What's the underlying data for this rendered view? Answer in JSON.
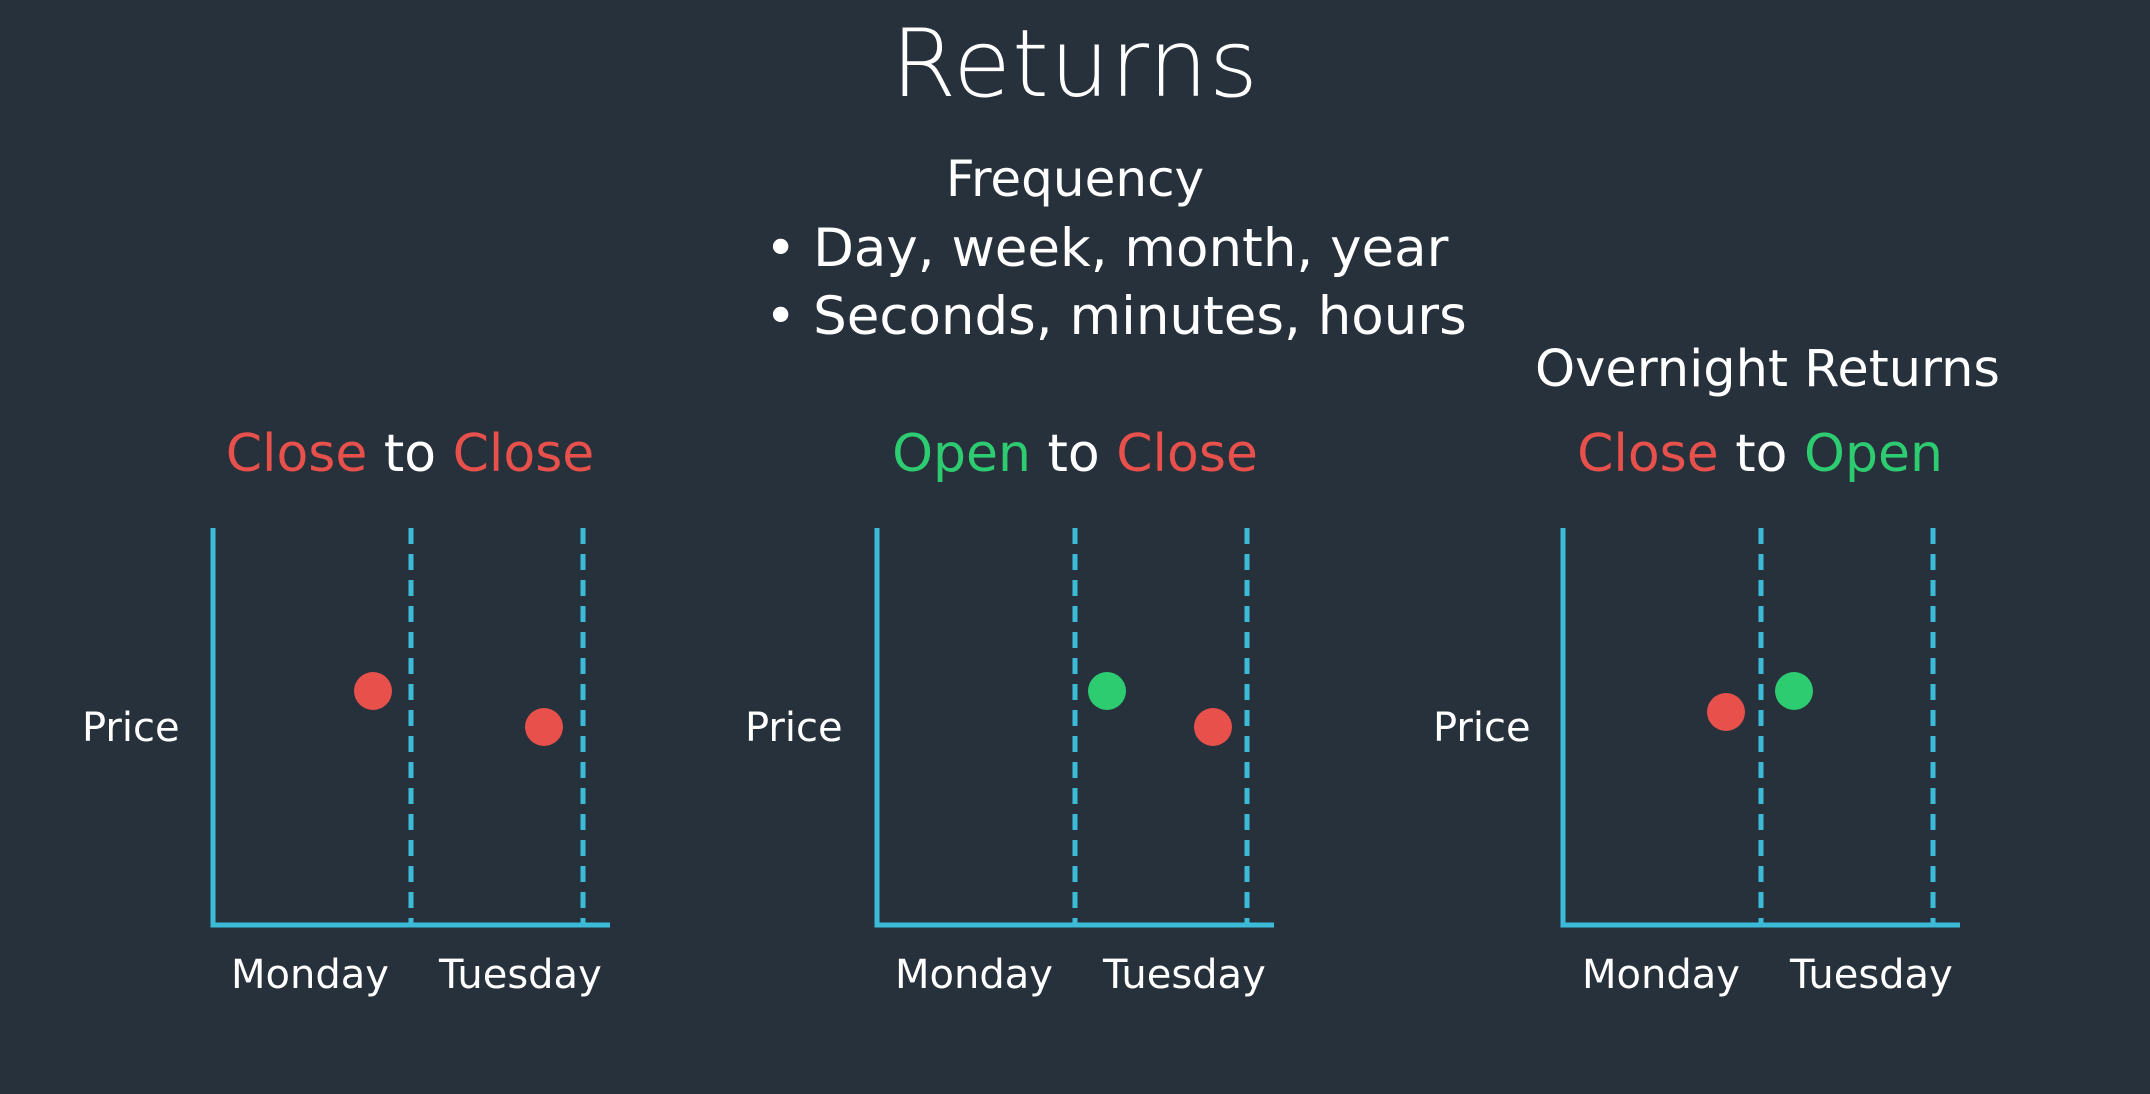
{
  "title": "Returns",
  "frequency": {
    "heading": "Frequency",
    "bullets": [
      "Day, week, month, year",
      "Seconds, minutes, hours"
    ]
  },
  "overnight_label": "Overnight Returns",
  "colors": {
    "background": "#27313b",
    "axis": "#3bbbd8",
    "close": "#e8504b",
    "open": "#2ecc71",
    "text": "#ffffff"
  },
  "panels": [
    {
      "title": {
        "from": "Close",
        "connector": "to",
        "to": "Close"
      },
      "from_type": "close",
      "to_type": "close",
      "y_label": "Price",
      "x_labels": [
        "Monday",
        "Tuesday"
      ],
      "points": [
        {
          "type": "close",
          "day": "Monday",
          "when": "end"
        },
        {
          "type": "close",
          "day": "Tuesday",
          "when": "end"
        }
      ]
    },
    {
      "title": {
        "from": "Open",
        "connector": "to",
        "to": "Close"
      },
      "from_type": "open",
      "to_type": "close",
      "y_label": "Price",
      "x_labels": [
        "Monday",
        "Tuesday"
      ],
      "points": [
        {
          "type": "open",
          "day": "Tuesday",
          "when": "start"
        },
        {
          "type": "close",
          "day": "Tuesday",
          "when": "end"
        }
      ]
    },
    {
      "title": {
        "from": "Close",
        "connector": "to",
        "to": "Open"
      },
      "from_type": "close",
      "to_type": "open",
      "y_label": "Price",
      "x_labels": [
        "Monday",
        "Tuesday"
      ],
      "points": [
        {
          "type": "close",
          "day": "Monday",
          "when": "end"
        },
        {
          "type": "open",
          "day": "Tuesday",
          "when": "start"
        }
      ]
    }
  ]
}
